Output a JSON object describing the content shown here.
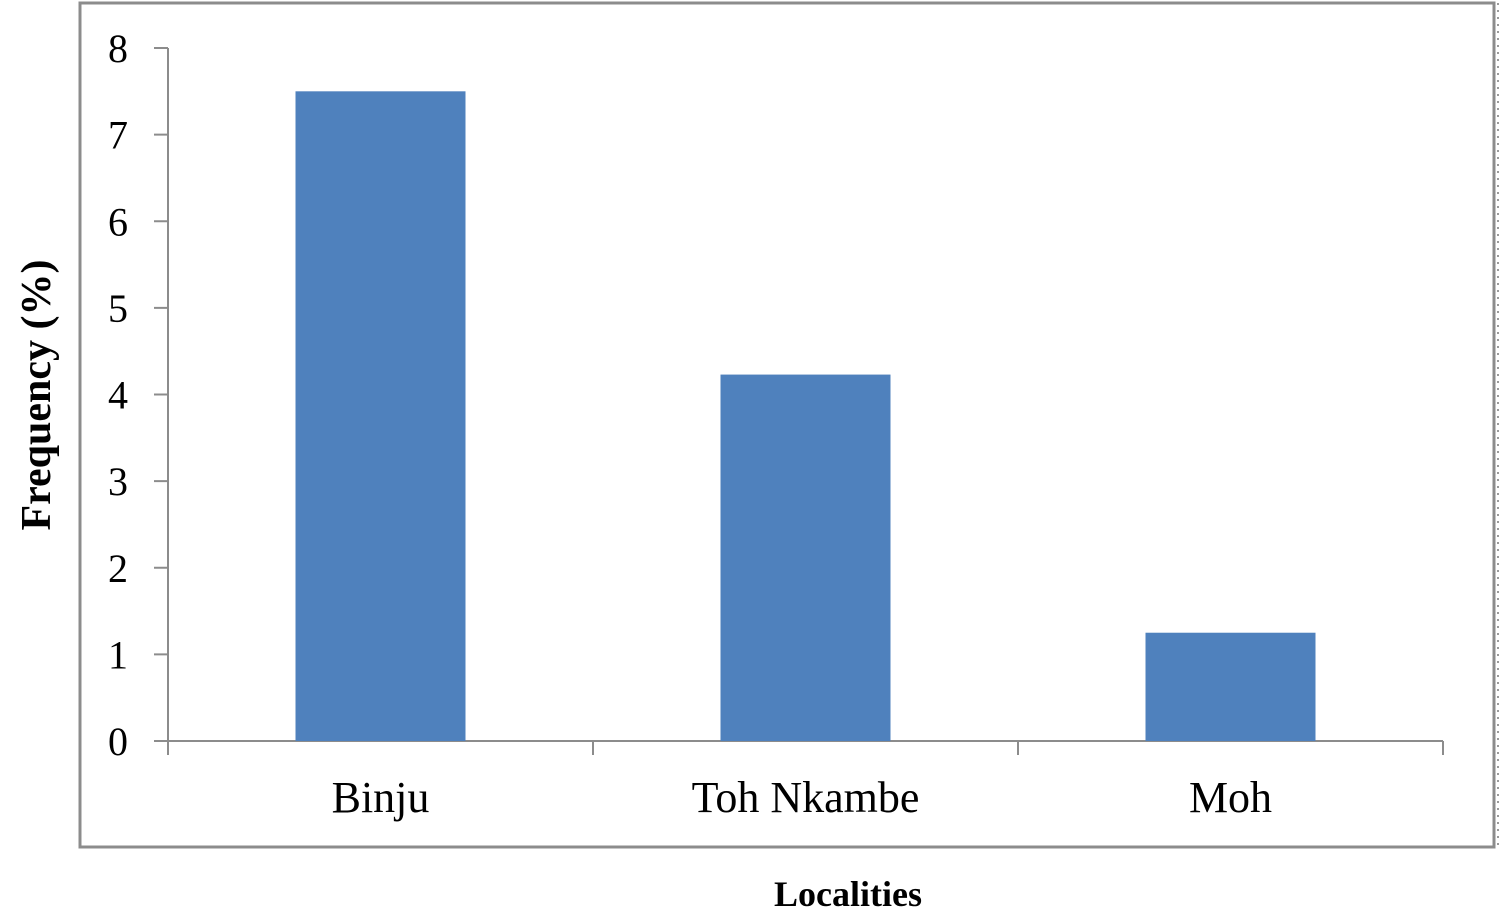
{
  "chart_data": {
    "type": "bar",
    "categories": [
      "Binju",
      "Toh Nkambe",
      "Moh"
    ],
    "values": [
      7.5,
      4.23,
      1.25
    ],
    "xlabel": "Localities",
    "ylabel": "Frequency (%)",
    "ylim": [
      0,
      8
    ],
    "yticks": [
      0,
      1,
      2,
      3,
      4,
      5,
      6,
      7,
      8
    ],
    "bar_color": "#4f81bd",
    "grid": false,
    "legend": "none"
  }
}
